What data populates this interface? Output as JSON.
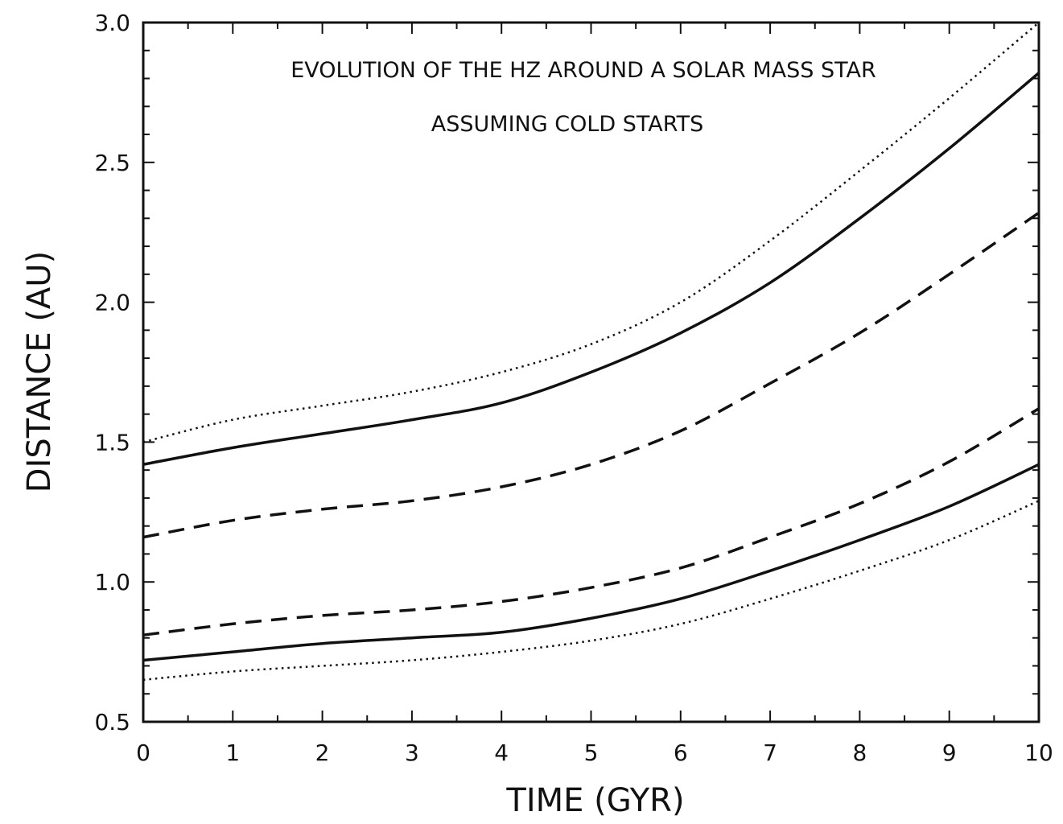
{
  "chart_data": {
    "type": "line",
    "title": "EVOLUTION OF THE HZ AROUND A SOLAR MASS STAR",
    "subtitle": "ASSUMING COLD STARTS",
    "xlabel": "TIME (GYR)",
    "ylabel": "DISTANCE (AU)",
    "xlim": [
      0,
      10
    ],
    "ylim": [
      0.5,
      3.0
    ],
    "x_ticks": [
      "0",
      "1",
      "2",
      "3",
      "4",
      "5",
      "6",
      "7",
      "8",
      "9",
      "10"
    ],
    "y_ticks": [
      "0.5",
      "1.0",
      "1.5",
      "2.0",
      "2.5",
      "3.0"
    ],
    "grid": false,
    "legend": "none",
    "x": [
      0,
      1,
      2,
      3,
      4,
      5,
      6,
      7,
      8,
      9,
      10
    ],
    "series": [
      {
        "style": "dotted",
        "color": "#111111",
        "values": [
          1.5,
          1.58,
          1.63,
          1.68,
          1.75,
          1.85,
          2.0,
          2.22,
          2.47,
          2.73,
          3.0
        ]
      },
      {
        "style": "solid",
        "color": "#111111",
        "values": [
          1.42,
          1.48,
          1.53,
          1.58,
          1.64,
          1.75,
          1.89,
          2.07,
          2.3,
          2.55,
          2.82
        ]
      },
      {
        "style": "dashed",
        "color": "#111111",
        "values": [
          1.16,
          1.22,
          1.26,
          1.29,
          1.34,
          1.42,
          1.54,
          1.71,
          1.89,
          2.1,
          2.32
        ]
      },
      {
        "style": "dashed",
        "color": "#111111",
        "values": [
          0.81,
          0.85,
          0.88,
          0.9,
          0.93,
          0.98,
          1.05,
          1.16,
          1.28,
          1.43,
          1.62
        ]
      },
      {
        "style": "solid",
        "color": "#111111",
        "values": [
          0.72,
          0.75,
          0.78,
          0.8,
          0.82,
          0.87,
          0.94,
          1.04,
          1.15,
          1.27,
          1.42
        ]
      },
      {
        "style": "dotted",
        "color": "#111111",
        "values": [
          0.65,
          0.68,
          0.7,
          0.72,
          0.75,
          0.79,
          0.85,
          0.94,
          1.04,
          1.15,
          1.29
        ]
      }
    ]
  }
}
